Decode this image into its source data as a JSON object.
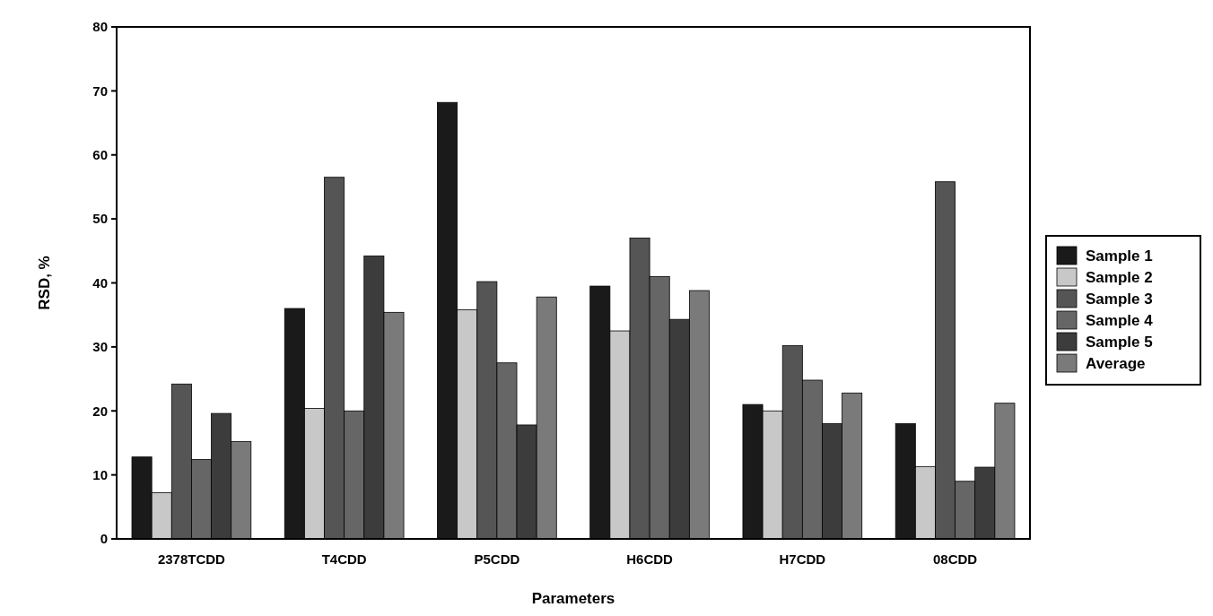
{
  "chart_data": {
    "type": "bar",
    "xlabel": "Parameters",
    "ylabel": "RSD, %",
    "categories": [
      "2378TCDD",
      "T4CDD",
      "P5CDD",
      "H6CDD",
      "H7CDD",
      "08CDD"
    ],
    "series": [
      {
        "name": "Sample 1",
        "color": "#1a1a1a",
        "values": [
          12.8,
          36,
          68.2,
          39.5,
          21,
          18
        ]
      },
      {
        "name": "Sample 2",
        "color": "#c8c8c8",
        "values": [
          7.2,
          20.4,
          35.8,
          32.5,
          20,
          11.3
        ]
      },
      {
        "name": "Sample 3",
        "color": "#555555",
        "values": [
          24.2,
          56.5,
          40.2,
          47,
          30.2,
          55.8
        ]
      },
      {
        "name": "Sample 4",
        "color": "#666666",
        "values": [
          12.4,
          20,
          27.5,
          41,
          24.8,
          9
        ]
      },
      {
        "name": "Sample 5",
        "color": "#3c3c3c",
        "values": [
          19.6,
          44.2,
          17.8,
          34.3,
          18,
          11.2
        ]
      },
      {
        "name": "Average",
        "color": "#7a7a7a",
        "values": [
          15.2,
          35.4,
          37.8,
          38.8,
          22.8,
          21.2
        ]
      }
    ],
    "ylim": [
      0,
      80
    ],
    "yticks": [
      0,
      10,
      20,
      30,
      40,
      50,
      60,
      70,
      80
    ],
    "grid": false,
    "legend": "right"
  }
}
